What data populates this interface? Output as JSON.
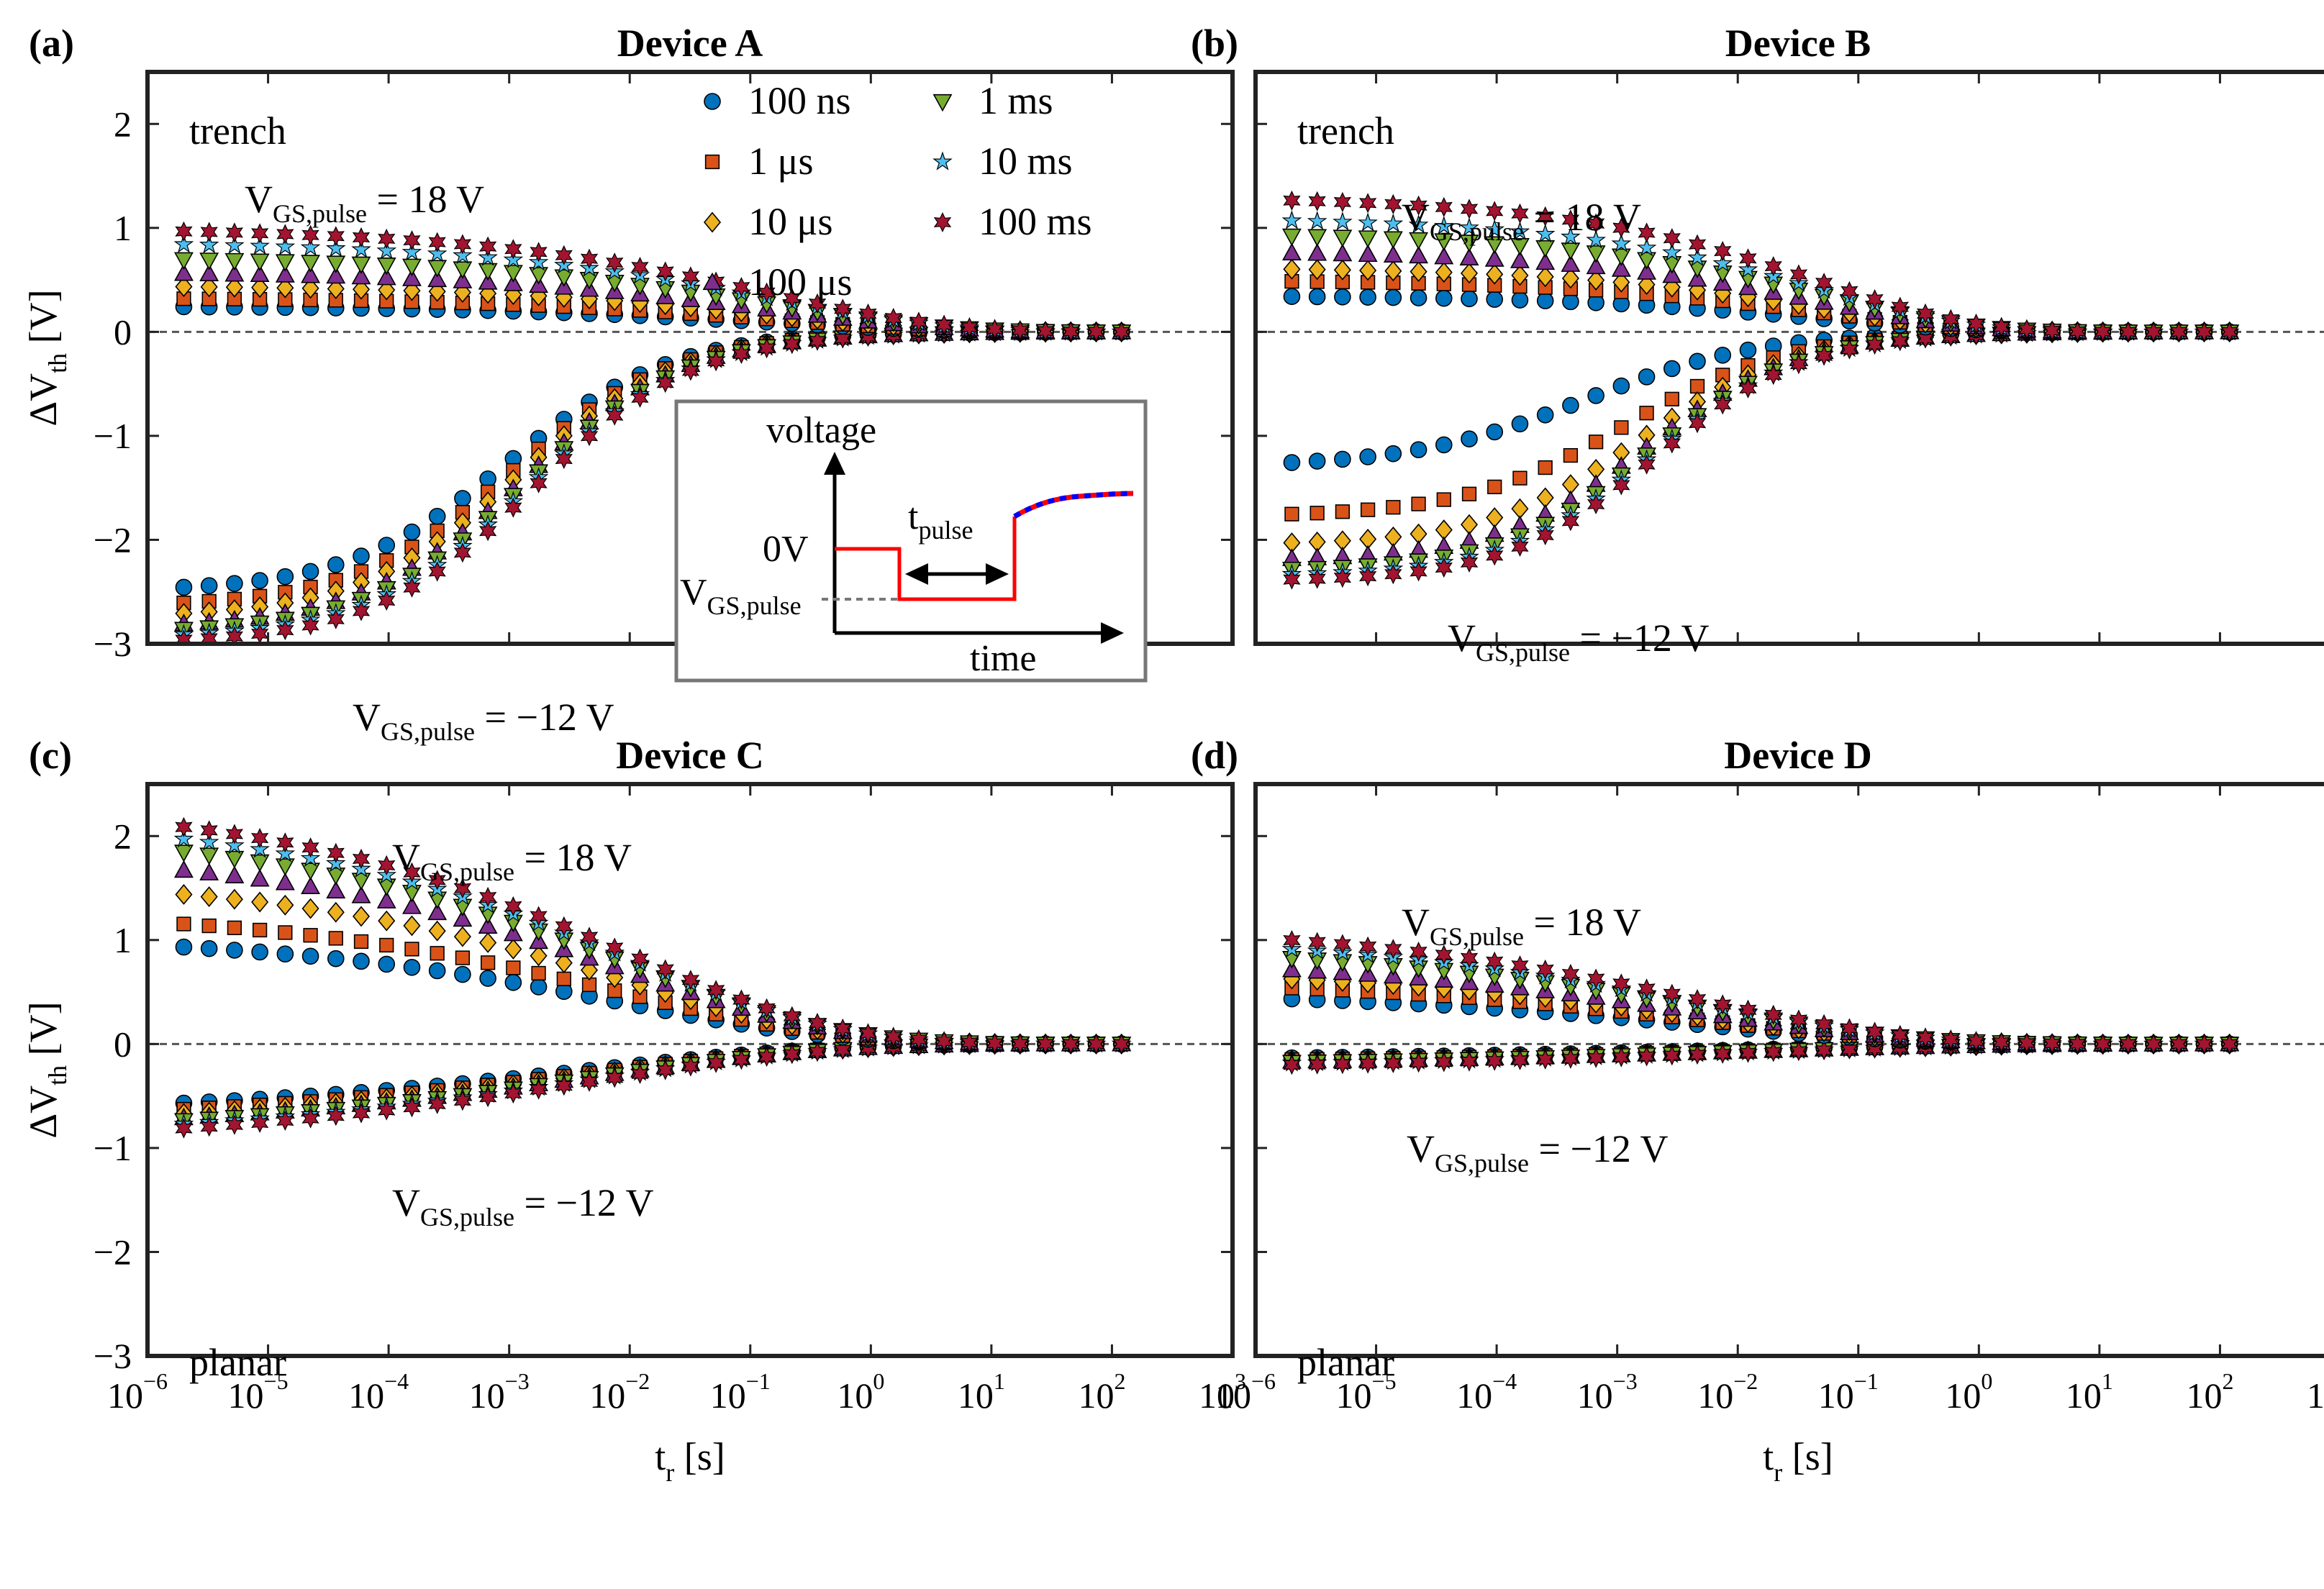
{
  "figure": {
    "ylabel": "ΔV",
    "ylabel_sub": "th",
    "ylabel_unit": " [V]",
    "xlabel": "t",
    "xlabel_sub": "r",
    "xlabel_unit": " [s]",
    "x_tick_base": "10",
    "x_tick_exponents": [
      "−6",
      "−5",
      "−4",
      "−3",
      "−2",
      "−1",
      "0",
      "1",
      "2",
      "3"
    ],
    "y_tick_labels": [
      "2",
      "1",
      "0",
      "−1",
      "−2",
      "−3"
    ]
  },
  "legend": {
    "entries": [
      {
        "label": "100 ns",
        "marker": "circle",
        "color": "#0072BD"
      },
      {
        "label": "1 μs",
        "marker": "square",
        "color": "#D95319"
      },
      {
        "label": "10 μs",
        "marker": "diamond",
        "color": "#EDB120"
      },
      {
        "label": "100 μs",
        "marker": "triangle-up",
        "color": "#7E2F8E"
      },
      {
        "label": "1 ms",
        "marker": "triangle-down",
        "color": "#77AC30"
      },
      {
        "label": "10 ms",
        "marker": "pentagram",
        "color": "#4DBEEE"
      },
      {
        "label": "100 ms",
        "marker": "hexagram",
        "color": "#A2142F"
      }
    ]
  },
  "annotations": {
    "vgs_main": "V",
    "vgs_sub": "GS,pulse",
    "pos_value": " = 18 V",
    "neg_value": " = −12 V"
  },
  "inset": {
    "voltage_label": "voltage",
    "time_label": "time",
    "zero_label": "0V",
    "vgs_main": "V",
    "vgs_sub": "GS,pulse",
    "tpulse_main": "t",
    "tpulse_sub": "pulse",
    "signal_color": "#FF0000",
    "recovery_color": "#0000FF"
  },
  "panels": [
    {
      "letter": "(a)",
      "title": "Device A",
      "structure": "trench"
    },
    {
      "letter": "(b)",
      "title": "Device B",
      "structure": "trench"
    },
    {
      "letter": "(c)",
      "title": "Device C",
      "structure": "planar"
    },
    {
      "letter": "(d)",
      "title": "Device D",
      "structure": "planar"
    }
  ],
  "chart_data": [
    {
      "type": "scatter",
      "title": "Device A",
      "panel": "(a)",
      "xscale": "log",
      "xlim": [
        1e-06,
        1000
      ],
      "ylim": [
        -3,
        2.5
      ],
      "xlabel": "t_r [s]",
      "ylabel": "ΔV_th [V]",
      "t_range_s": [
        2e-06,
        120
      ],
      "points_per_series": 38,
      "reference_line_y": 0,
      "series": [
        {
          "name": "100 ns",
          "positive": {
            "start": 0.25,
            "type": "decay",
            "tau": 0.15,
            "p": 0.3
          },
          "negative": {
            "start": -2.5,
            "type": "sigmoid",
            "t0": 0.001,
            "k": 0.65
          }
        },
        {
          "name": "1 μs",
          "positive": {
            "start": 0.33,
            "type": "decay",
            "tau": 0.15,
            "p": 0.3
          },
          "negative": {
            "start": -2.65,
            "type": "sigmoid",
            "t0": 0.0011,
            "k": 0.65
          }
        },
        {
          "name": "10 μs",
          "positive": {
            "start": 0.45,
            "type": "decay",
            "tau": 0.15,
            "p": 0.3
          },
          "negative": {
            "start": -2.75,
            "type": "sigmoid",
            "t0": 0.0012,
            "k": 0.65
          }
        },
        {
          "name": "100 μs",
          "positive": {
            "start": 0.58,
            "type": "decay",
            "tau": 0.15,
            "p": 0.3
          },
          "negative": {
            "start": -2.85,
            "type": "sigmoid",
            "t0": 0.0013,
            "k": 0.65
          }
        },
        {
          "name": "1 ms",
          "positive": {
            "start": 0.72,
            "type": "decay",
            "tau": 0.15,
            "p": 0.3
          },
          "negative": {
            "start": -2.9,
            "type": "sigmoid",
            "t0": 0.0014,
            "k": 0.65
          }
        },
        {
          "name": "10 ms",
          "positive": {
            "start": 0.87,
            "type": "decay",
            "tau": 0.15,
            "p": 0.3
          },
          "negative": {
            "start": -2.95,
            "type": "sigmoid",
            "t0": 0.0015,
            "k": 0.65
          }
        },
        {
          "name": "100 ms",
          "positive": {
            "start": 1.0,
            "type": "decay",
            "tau": 0.15,
            "p": 0.3
          },
          "negative": {
            "start": -3.0,
            "type": "sigmoid",
            "t0": 0.0016,
            "k": 0.65
          }
        }
      ]
    },
    {
      "type": "scatter",
      "title": "Device B",
      "panel": "(b)",
      "xscale": "log",
      "xlim": [
        1e-06,
        1000
      ],
      "ylim": [
        -3,
        2.5
      ],
      "xlabel": "t_r [s]",
      "ylabel": "ΔV_th [V]",
      "t_range_s": [
        2e-06,
        120
      ],
      "points_per_series": 38,
      "reference_line_y": 0,
      "series": [
        {
          "name": "100 ns",
          "positive": {
            "start": 0.35,
            "type": "decay",
            "tau": 0.05,
            "p": 0.35
          },
          "negative": {
            "start": -1.3,
            "type": "sigmoid",
            "t0": 0.00055,
            "k": 0.6
          }
        },
        {
          "name": "1 μs",
          "positive": {
            "start": 0.5,
            "type": "decay",
            "tau": 0.05,
            "p": 0.35
          },
          "negative": {
            "start": -1.78,
            "type": "sigmoid",
            "t0": 0.0012,
            "k": 0.65
          }
        },
        {
          "name": "10 μs",
          "positive": {
            "start": 0.62,
            "type": "decay",
            "tau": 0.05,
            "p": 0.35
          },
          "negative": {
            "start": -2.05,
            "type": "sigmoid",
            "t0": 0.0016,
            "k": 0.68
          }
        },
        {
          "name": "100 μs",
          "positive": {
            "start": 0.78,
            "type": "decay",
            "tau": 0.05,
            "p": 0.35
          },
          "negative": {
            "start": -2.2,
            "type": "sigmoid",
            "t0": 0.0018,
            "k": 0.7
          }
        },
        {
          "name": "1 ms",
          "positive": {
            "start": 0.95,
            "type": "decay",
            "tau": 0.05,
            "p": 0.35
          },
          "negative": {
            "start": -2.3,
            "type": "sigmoid",
            "t0": 0.0019,
            "k": 0.7
          }
        },
        {
          "name": "10 ms",
          "positive": {
            "start": 1.1,
            "type": "decay",
            "tau": 0.05,
            "p": 0.35
          },
          "negative": {
            "start": -2.35,
            "type": "sigmoid",
            "t0": 0.002,
            "k": 0.7
          }
        },
        {
          "name": "100 ms",
          "positive": {
            "start": 1.3,
            "type": "decay",
            "tau": 0.05,
            "p": 0.35
          },
          "negative": {
            "start": -2.4,
            "type": "sigmoid",
            "t0": 0.0021,
            "k": 0.7
          }
        }
      ]
    },
    {
      "type": "scatter",
      "title": "Device C",
      "panel": "(c)",
      "xscale": "log",
      "xlim": [
        1e-06,
        1000
      ],
      "ylim": [
        -3,
        2.5
      ],
      "xlabel": "t_r [s]",
      "ylabel": "ΔV_th [V]",
      "t_range_s": [
        2e-06,
        120
      ],
      "points_per_series": 38,
      "reference_line_y": 0,
      "series": [
        {
          "name": "100 ns",
          "positive": {
            "start": 1.05,
            "type": "decay",
            "tau": 0.01,
            "p": 0.25
          },
          "negative": {
            "start": -0.68,
            "type": "decay",
            "tau": 0.005,
            "p": 0.22
          }
        },
        {
          "name": "1 μs",
          "positive": {
            "start": 1.3,
            "type": "decay",
            "tau": 0.01,
            "p": 0.25
          },
          "negative": {
            "start": -0.75,
            "type": "decay",
            "tau": 0.005,
            "p": 0.22
          }
        },
        {
          "name": "10 μs",
          "positive": {
            "start": 1.62,
            "type": "decay",
            "tau": 0.01,
            "p": 0.25
          },
          "negative": {
            "start": -0.8,
            "type": "decay",
            "tau": 0.005,
            "p": 0.22
          }
        },
        {
          "name": "100 μs",
          "positive": {
            "start": 1.88,
            "type": "decay",
            "tau": 0.01,
            "p": 0.25
          },
          "negative": {
            "start": -0.85,
            "type": "decay",
            "tau": 0.005,
            "p": 0.22
          }
        },
        {
          "name": "1 ms",
          "positive": {
            "start": 2.08,
            "type": "decay",
            "tau": 0.01,
            "p": 0.25
          },
          "negative": {
            "start": -0.88,
            "type": "decay",
            "tau": 0.005,
            "p": 0.22
          }
        },
        {
          "name": "10 ms",
          "positive": {
            "start": 2.22,
            "type": "decay",
            "tau": 0.01,
            "p": 0.25
          },
          "negative": {
            "start": -0.92,
            "type": "decay",
            "tau": 0.005,
            "p": 0.22
          }
        },
        {
          "name": "100 ms",
          "positive": {
            "start": 2.35,
            "type": "decay",
            "tau": 0.01,
            "p": 0.25
          },
          "negative": {
            "start": -0.97,
            "type": "decay",
            "tau": 0.005,
            "p": 0.22
          }
        }
      ]
    },
    {
      "type": "scatter",
      "title": "Device D",
      "panel": "(d)",
      "xscale": "log",
      "xlim": [
        1e-06,
        1000
      ],
      "ylim": [
        -3,
        2.5
      ],
      "xlabel": "t_r [s]",
      "ylabel": "ΔV_th [V]",
      "t_range_s": [
        2e-06,
        120
      ],
      "points_per_series": 38,
      "reference_line_y": 0,
      "series": [
        {
          "name": "100 ns",
          "positive": {
            "start": 0.5,
            "type": "decay",
            "tau": 0.005,
            "p": 0.25
          },
          "negative": {
            "start": -0.16,
            "type": "decay",
            "tau": 0.01,
            "p": 0.2
          }
        },
        {
          "name": "1 μs",
          "positive": {
            "start": 0.62,
            "type": "decay",
            "tau": 0.005,
            "p": 0.25
          },
          "negative": {
            "start": -0.18,
            "type": "decay",
            "tau": 0.01,
            "p": 0.2
          }
        },
        {
          "name": "10 μs",
          "positive": {
            "start": 0.72,
            "type": "decay",
            "tau": 0.005,
            "p": 0.25
          },
          "negative": {
            "start": -0.19,
            "type": "decay",
            "tau": 0.01,
            "p": 0.2
          }
        },
        {
          "name": "100 μs",
          "positive": {
            "start": 0.82,
            "type": "decay",
            "tau": 0.005,
            "p": 0.25
          },
          "negative": {
            "start": -0.2,
            "type": "decay",
            "tau": 0.01,
            "p": 0.2
          }
        },
        {
          "name": "1 ms",
          "positive": {
            "start": 0.95,
            "type": "decay",
            "tau": 0.005,
            "p": 0.25
          },
          "negative": {
            "start": -0.21,
            "type": "decay",
            "tau": 0.01,
            "p": 0.2
          }
        },
        {
          "name": "10 ms",
          "positive": {
            "start": 1.05,
            "type": "decay",
            "tau": 0.005,
            "p": 0.25
          },
          "negative": {
            "start": -0.22,
            "type": "decay",
            "tau": 0.01,
            "p": 0.2
          }
        },
        {
          "name": "100 ms",
          "positive": {
            "start": 1.15,
            "type": "decay",
            "tau": 0.005,
            "p": 0.25
          },
          "negative": {
            "start": -0.24,
            "type": "decay",
            "tau": 0.01,
            "p": 0.2
          }
        }
      ]
    }
  ]
}
